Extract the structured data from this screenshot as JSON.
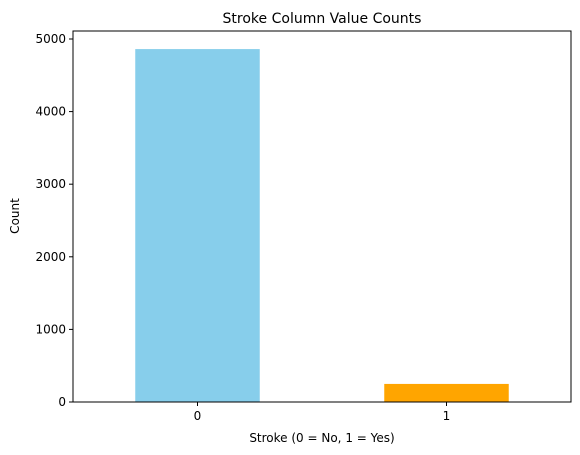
{
  "chart_data": {
    "type": "bar",
    "title": "Stroke Column Value Counts",
    "xlabel": "Stroke (0 = No, 1 = Yes)",
    "ylabel": "Count",
    "categories": [
      "0",
      "1"
    ],
    "values": [
      4861,
      249
    ],
    "colors": [
      "#87ceeb",
      "#ffa500"
    ],
    "ylim": [
      0,
      5110
    ],
    "yticks": [
      0,
      1000,
      2000,
      3000,
      4000,
      5000
    ],
    "grid": false,
    "legend": "none"
  }
}
